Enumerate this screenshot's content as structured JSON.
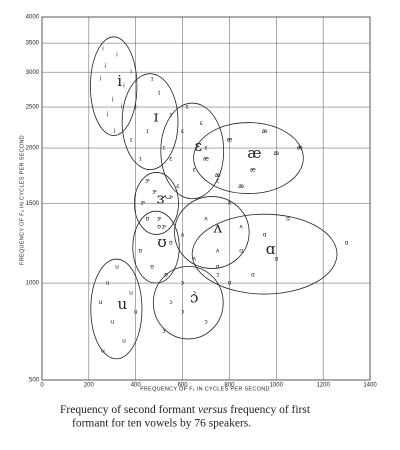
{
  "chart_data": {
    "type": "scatter",
    "xlabel": "FREQUENCY OF F₁ IN CYCLES PER SECOND",
    "ylabel": "FREQUENCY OF F₂ IN CYCLES PER SECOND",
    "xlim": [
      0,
      1400
    ],
    "xticks": [
      0,
      200,
      400,
      600,
      800,
      1000,
      1200,
      1400
    ],
    "ylim": [
      500,
      4000
    ],
    "yticks": [
      500,
      1000,
      1500,
      2000,
      2500,
      3000,
      3500,
      4000
    ],
    "grid": true,
    "caption": [
      "Frequency of second formant ",
      "versus",
      " frequency of first",
      "formant for ten vowels by 76 speakers."
    ],
    "series": [
      {
        "name": "i",
        "x": [
          250,
          270,
          300,
          320,
          280,
          350,
          310,
          380,
          260,
          340
        ],
        "y": [
          2900,
          3100,
          2600,
          3300,
          2400,
          2800,
          2200,
          3000,
          3400,
          2500
        ]
      },
      {
        "name": "ɪ",
        "x": [
          400,
          450,
          500,
          420,
          550,
          470,
          380,
          520
        ],
        "y": [
          2500,
          2200,
          2700,
          1900,
          2400,
          2900,
          2100,
          2000
        ]
      },
      {
        "name": "ɛ",
        "x": [
          550,
          600,
          650,
          700,
          620,
          750,
          580,
          680
        ],
        "y": [
          1900,
          2200,
          1800,
          2000,
          2500,
          1700,
          1650,
          2300
        ]
      },
      {
        "name": "æ",
        "x": [
          700,
          800,
          900,
          1000,
          850,
          950,
          750,
          1100
        ],
        "y": [
          1900,
          2100,
          1800,
          1950,
          1650,
          2200,
          1750,
          2000
        ]
      },
      {
        "name": "ʌ",
        "x": [
          600,
          700,
          750,
          800,
          650,
          850
        ],
        "y": [
          1300,
          1400,
          1200,
          1500,
          1150,
          1350
        ]
      },
      {
        "name": "ɑ",
        "x": [
          750,
          850,
          950,
          1000,
          800,
          900,
          1050,
          1300
        ],
        "y": [
          1100,
          1200,
          1300,
          1150,
          1000,
          1050,
          1400,
          1250
        ]
      },
      {
        "name": "ɔ",
        "x": [
          550,
          600,
          650,
          700,
          600,
          750,
          520
        ],
        "y": [
          900,
          850,
          950,
          800,
          1000,
          1050,
          750
        ]
      },
      {
        "name": "ʊ",
        "x": [
          420,
          470,
          500,
          550,
          450,
          530
        ],
        "y": [
          1200,
          1100,
          1350,
          1250,
          1400,
          1050
        ]
      },
      {
        "name": "u",
        "x": [
          250,
          300,
          350,
          280,
          320,
          400,
          260,
          380
        ],
        "y": [
          900,
          800,
          700,
          1000,
          1100,
          850,
          650,
          950
        ]
      },
      {
        "name": "ɝ",
        "x": [
          430,
          480,
          500,
          450,
          550,
          520
        ],
        "y": [
          1500,
          1600,
          1400,
          1700,
          1550,
          1350
        ]
      }
    ]
  }
}
